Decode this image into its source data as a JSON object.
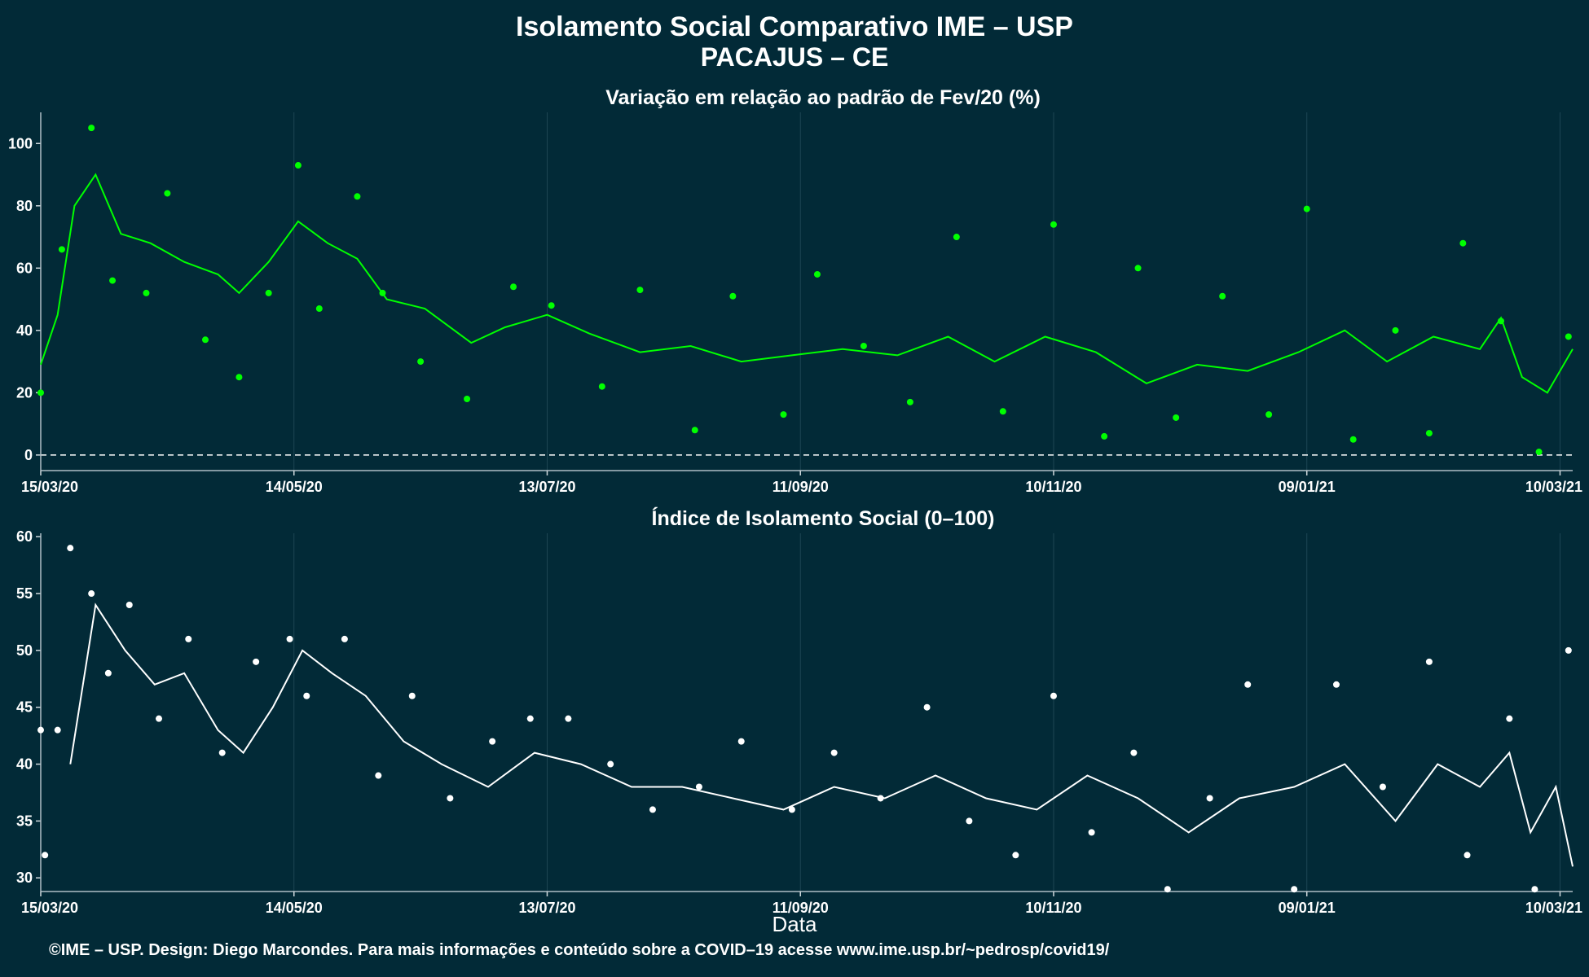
{
  "header": {
    "title": "Isolamento Social Comparativo IME – USP",
    "subtitle": "PACAJUS – CE"
  },
  "footer": "©IME – USP. Design: Diego Marcondes. Para mais informações e conteúdo sobre a COVID–19 acesse www.ime.usp.br/~pedrosp/covid19/",
  "colors": {
    "background": "#022a37",
    "grid": "#1e4654",
    "series_top": "#00ff00",
    "series_bottom": "#ffffff"
  },
  "chart_data": [
    {
      "type": "scatter",
      "title": "Variação em relação ao padrão de Fev/20 (%)",
      "xlabel": "",
      "ylabel": "",
      "x_start": "15/03/20",
      "x_end": "13/03/21",
      "ylim": [
        -5,
        110
      ],
      "yticks": [
        0,
        20,
        40,
        60,
        80,
        100
      ],
      "xticks": [
        "15/03/20",
        "14/05/20",
        "13/07/20",
        "11/09/20",
        "10/11/20",
        "09/01/21",
        "10/03/21"
      ],
      "reference_line": 0,
      "grid": true,
      "series": [
        {
          "style": "points",
          "color": "#00ff00",
          "x": [
            "15/03/20",
            "20/03/20",
            "27/03/20",
            "01/04/20",
            "09/04/20",
            "14/04/20",
            "23/04/20",
            "01/05/20",
            "08/05/20",
            "15/05/20",
            "20/05/20",
            "29/05/20",
            "04/06/20",
            "13/06/20",
            "24/06/20",
            "05/07/20",
            "14/07/20",
            "26/07/20",
            "04/08/20",
            "17/08/20",
            "26/08/20",
            "07/09/20",
            "15/09/20",
            "26/09/20",
            "07/10/20",
            "18/10/20",
            "29/10/20",
            "10/11/20",
            "22/11/20",
            "30/11/20",
            "09/12/20",
            "20/12/20",
            "31/12/20",
            "09/01/21",
            "20/01/21",
            "30/01/21",
            "07/02/21",
            "15/02/21",
            "24/02/21",
            "05/03/21",
            "12/03/21"
          ],
          "y": [
            20,
            66,
            105,
            56,
            52,
            84,
            37,
            25,
            52,
            93,
            47,
            83,
            52,
            30,
            18,
            54,
            48,
            22,
            53,
            8,
            51,
            13,
            58,
            35,
            17,
            70,
            14,
            74,
            6,
            60,
            12,
            51,
            13,
            79,
            5,
            40,
            7,
            68,
            43,
            1,
            38
          ]
        },
        {
          "style": "line",
          "color": "#00ff00",
          "x": [
            "15/03/20",
            "19/03/20",
            "23/03/20",
            "28/03/20",
            "03/04/20",
            "10/04/20",
            "18/04/20",
            "26/04/20",
            "01/05/20",
            "08/05/20",
            "15/05/20",
            "22/05/20",
            "29/05/20",
            "05/06/20",
            "14/06/20",
            "25/06/20",
            "03/07/20",
            "13/07/20",
            "23/07/20",
            "04/08/20",
            "16/08/20",
            "28/08/20",
            "09/09/20",
            "21/09/20",
            "04/10/20",
            "16/10/20",
            "27/10/20",
            "08/11/20",
            "20/11/20",
            "02/12/20",
            "14/12/20",
            "26/12/20",
            "07/01/21",
            "18/01/21",
            "28/01/21",
            "08/02/21",
            "19/02/21",
            "24/02/21",
            "01/03/21",
            "07/03/21",
            "13/03/21"
          ],
          "y": [
            29,
            45,
            80,
            90,
            71,
            68,
            62,
            58,
            52,
            62,
            75,
            68,
            63,
            50,
            47,
            36,
            41,
            45,
            39,
            33,
            35,
            30,
            32,
            34,
            32,
            38,
            30,
            38,
            33,
            23,
            29,
            27,
            33,
            40,
            30,
            38,
            34,
            44,
            25,
            20,
            34
          ]
        }
      ]
    },
    {
      "type": "scatter",
      "title": "Índice de Isolamento Social (0–100)",
      "xlabel": "Data",
      "ylabel": "",
      "x_start": "15/03/20",
      "x_end": "13/03/21",
      "ylim": [
        28.8,
        60.3
      ],
      "yticks": [
        30,
        35,
        40,
        45,
        50,
        55,
        60
      ],
      "xticks": [
        "15/03/20",
        "14/05/20",
        "13/07/20",
        "11/09/20",
        "10/11/20",
        "09/01/21",
        "10/03/21"
      ],
      "grid": true,
      "series": [
        {
          "style": "points",
          "color": "#ffffff",
          "x": [
            "15/03/20",
            "16/03/20",
            "19/03/20",
            "22/03/20",
            "27/03/20",
            "31/03/20",
            "05/04/20",
            "12/04/20",
            "19/04/20",
            "27/04/20",
            "05/05/20",
            "13/05/20",
            "17/05/20",
            "26/05/20",
            "03/06/20",
            "11/06/20",
            "20/06/20",
            "30/06/20",
            "09/07/20",
            "18/07/20",
            "28/07/20",
            "07/08/20",
            "18/08/20",
            "28/08/20",
            "09/09/20",
            "19/09/20",
            "30/09/20",
            "11/10/20",
            "21/10/20",
            "01/11/20",
            "10/11/20",
            "19/11/20",
            "29/11/20",
            "07/12/20",
            "17/12/20",
            "26/12/20",
            "06/01/21",
            "16/01/21",
            "27/01/21",
            "07/02/21",
            "16/02/21",
            "26/02/21",
            "04/03/21",
            "12/03/21"
          ],
          "y": [
            43,
            32,
            43,
            59,
            55,
            48,
            54,
            44,
            51,
            41,
            49,
            51,
            46,
            51,
            39,
            46,
            37,
            42,
            44,
            44,
            40,
            36,
            38,
            42,
            36,
            41,
            37,
            45,
            35,
            32,
            46,
            34,
            41,
            29,
            37,
            47,
            29,
            47,
            38,
            49,
            32,
            44,
            29,
            50
          ]
        },
        {
          "style": "line",
          "color": "#ffffff",
          "x": [
            "22/03/20",
            "28/03/20",
            "04/04/20",
            "11/04/20",
            "18/04/20",
            "26/04/20",
            "02/05/20",
            "09/05/20",
            "16/05/20",
            "23/05/20",
            "31/05/20",
            "09/06/20",
            "18/06/20",
            "29/06/20",
            "10/07/20",
            "21/07/20",
            "02/08/20",
            "14/08/20",
            "26/08/20",
            "07/09/20",
            "19/09/20",
            "01/10/20",
            "13/10/20",
            "25/10/20",
            "06/11/20",
            "18/11/20",
            "30/11/20",
            "12/12/20",
            "24/12/20",
            "06/01/21",
            "18/01/21",
            "30/01/21",
            "09/02/21",
            "19/02/21",
            "26/02/21",
            "03/03/21",
            "09/03/21",
            "13/03/21"
          ],
          "y": [
            40,
            54,
            50,
            47,
            48,
            43,
            41,
            45,
            50,
            48,
            46,
            42,
            40,
            38,
            41,
            40,
            38,
            38,
            37,
            36,
            38,
            37,
            39,
            37,
            36,
            39,
            37,
            34,
            37,
            38,
            40,
            35,
            40,
            38,
            41,
            34,
            38,
            31
          ]
        }
      ]
    }
  ]
}
